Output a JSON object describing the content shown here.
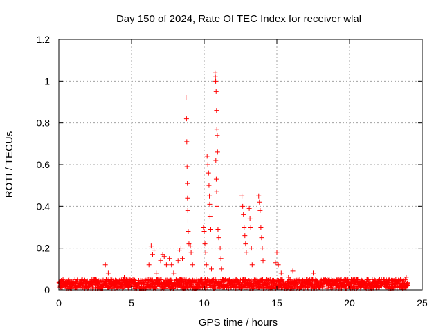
{
  "chart_data": {
    "type": "scatter",
    "title": "Day 150 of 2024, Rate Of TEC Index for receiver wlal",
    "xlabel": "GPS time / hours",
    "ylabel": "ROTI / TECUs",
    "xlim": [
      0,
      25
    ],
    "ylim": [
      0,
      1.2
    ],
    "xticks": [
      0,
      5,
      10,
      15,
      20,
      25
    ],
    "xtick_labels": [
      "0",
      "5",
      "10",
      "15",
      "20",
      "25"
    ],
    "yticks": [
      0,
      0.2,
      0.4,
      0.6,
      0.8,
      1.0,
      1.2
    ],
    "ytick_labels": [
      "0",
      "0.2",
      "0.4",
      "0.6",
      "0.8",
      "1",
      "1.2"
    ],
    "grid": true,
    "marker": "+",
    "color": "#ff0000",
    "baseline": {
      "x_range": [
        0,
        24
      ],
      "typical_max": 0.05
    },
    "series": [
      {
        "name": "ROTI",
        "points": [
          [
            0.1,
            0.02
          ],
          [
            0.5,
            0.05
          ],
          [
            1.2,
            0.04
          ],
          [
            2.5,
            0.05
          ],
          [
            3.2,
            0.12
          ],
          [
            3.4,
            0.08
          ],
          [
            4.5,
            0.06
          ],
          [
            6.2,
            0.12
          ],
          [
            6.35,
            0.21
          ],
          [
            6.45,
            0.17
          ],
          [
            6.55,
            0.19
          ],
          [
            6.7,
            0.08
          ],
          [
            7.0,
            0.14
          ],
          [
            7.15,
            0.17
          ],
          [
            7.25,
            0.16
          ],
          [
            7.4,
            0.12
          ],
          [
            7.6,
            0.15
          ],
          [
            7.75,
            0.12
          ],
          [
            7.9,
            0.08
          ],
          [
            8.2,
            0.14
          ],
          [
            8.3,
            0.19
          ],
          [
            8.4,
            0.2
          ],
          [
            8.5,
            0.15
          ],
          [
            8.75,
            0.92
          ],
          [
            8.78,
            0.82
          ],
          [
            8.8,
            0.71
          ],
          [
            8.82,
            0.59
          ],
          [
            8.84,
            0.51
          ],
          [
            8.85,
            0.44
          ],
          [
            8.87,
            0.38
          ],
          [
            8.88,
            0.33
          ],
          [
            8.9,
            0.28
          ],
          [
            8.95,
            0.22
          ],
          [
            9.05,
            0.21
          ],
          [
            9.1,
            0.18
          ],
          [
            9.2,
            0.12
          ],
          [
            9.95,
            0.3
          ],
          [
            10.0,
            0.28
          ],
          [
            10.05,
            0.22
          ],
          [
            10.1,
            0.18
          ],
          [
            10.15,
            0.12
          ],
          [
            10.2,
            0.64
          ],
          [
            10.25,
            0.6
          ],
          [
            10.3,
            0.56
          ],
          [
            10.33,
            0.5
          ],
          [
            10.36,
            0.45
          ],
          [
            10.38,
            0.41
          ],
          [
            10.4,
            0.35
          ],
          [
            10.45,
            0.29
          ],
          [
            10.5,
            0.1
          ],
          [
            10.75,
            1.04
          ],
          [
            10.77,
            1.02
          ],
          [
            10.79,
            1.0
          ],
          [
            10.82,
            0.95
          ],
          [
            10.85,
            0.86
          ],
          [
            10.87,
            0.77
          ],
          [
            10.9,
            0.74
          ],
          [
            10.92,
            0.66
          ],
          [
            10.8,
            0.62
          ],
          [
            10.83,
            0.53
          ],
          [
            10.86,
            0.47
          ],
          [
            10.88,
            0.4
          ],
          [
            10.95,
            0.29
          ],
          [
            11.0,
            0.25
          ],
          [
            11.1,
            0.2
          ],
          [
            11.15,
            0.15
          ],
          [
            11.2,
            0.1
          ],
          [
            12.6,
            0.45
          ],
          [
            12.65,
            0.4
          ],
          [
            12.7,
            0.36
          ],
          [
            12.75,
            0.3
          ],
          [
            12.8,
            0.26
          ],
          [
            12.85,
            0.22
          ],
          [
            12.9,
            0.18
          ],
          [
            13.1,
            0.39
          ],
          [
            13.15,
            0.34
          ],
          [
            13.2,
            0.3
          ],
          [
            13.25,
            0.2
          ],
          [
            13.3,
            0.12
          ],
          [
            13.75,
            0.45
          ],
          [
            13.8,
            0.42
          ],
          [
            13.85,
            0.38
          ],
          [
            13.9,
            0.3
          ],
          [
            13.95,
            0.25
          ],
          [
            14.0,
            0.2
          ],
          [
            14.05,
            0.14
          ],
          [
            14.9,
            0.13
          ],
          [
            15.0,
            0.18
          ],
          [
            15.1,
            0.12
          ],
          [
            15.3,
            0.08
          ],
          [
            15.8,
            0.06
          ],
          [
            16.1,
            0.09
          ],
          [
            17.5,
            0.08
          ],
          [
            18.3,
            0.05
          ],
          [
            19.1,
            0.05
          ],
          [
            20.3,
            0.03
          ],
          [
            21.2,
            0.05
          ],
          [
            22.2,
            0.05
          ],
          [
            23.0,
            0.04
          ],
          [
            23.9,
            0.06
          ]
        ]
      }
    ]
  }
}
